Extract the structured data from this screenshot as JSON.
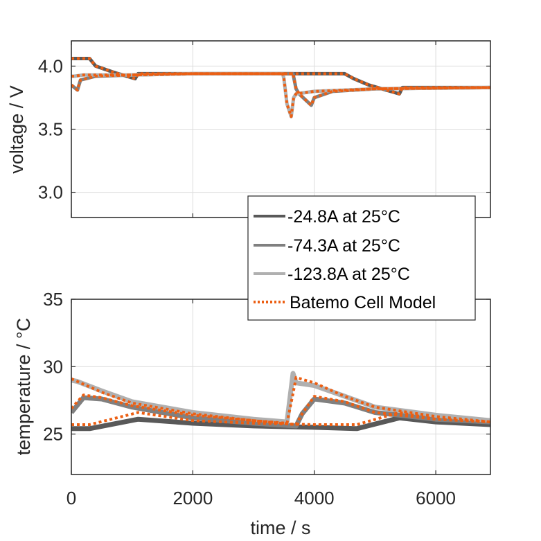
{
  "colors": {
    "s1": "#595959",
    "s2": "#808080",
    "s3": "#b0b0b0",
    "model": "#ec5f13",
    "grid": "#dcdcdc",
    "axis": "#262626"
  },
  "chart_data": [
    {
      "type": "line",
      "title": "",
      "xlabel": "",
      "ylabel": "voltage / V",
      "xlim": [
        0,
        6900
      ],
      "ylim": [
        2.8,
        4.2
      ],
      "xticks": [
        0,
        2000,
        4000,
        6000
      ],
      "yticks": [
        3.0,
        3.5,
        4.0
      ],
      "ytick_labels": [
        "3.0",
        "3.5",
        "4.0"
      ],
      "grid": true,
      "series": [
        {
          "name": "-24.8A at 25°C",
          "style": "solid",
          "color_key": "s1",
          "x": [
            0,
            300,
            400,
            700,
            1050,
            1100,
            2000,
            4500,
            4650,
            4900,
            5400,
            5450,
            6900
          ],
          "y": [
            4.06,
            4.06,
            4.0,
            3.95,
            3.9,
            3.94,
            3.94,
            3.94,
            3.9,
            3.85,
            3.78,
            3.83,
            3.83
          ]
        },
        {
          "name": "-74.3A at 25°C",
          "style": "solid",
          "color_key": "s2",
          "x": [
            0,
            100,
            150,
            400,
            1000,
            2000,
            3600,
            3650,
            3700,
            3750,
            3950,
            4000,
            4300,
            5000,
            6900
          ],
          "y": [
            3.85,
            3.81,
            3.89,
            3.92,
            3.93,
            3.94,
            3.94,
            3.94,
            3.82,
            3.78,
            3.69,
            3.75,
            3.8,
            3.82,
            3.83
          ]
        },
        {
          "name": "-123.8A at 25°C",
          "style": "solid",
          "color_key": "s3",
          "x": [
            0,
            50,
            200,
            1000,
            2000,
            3480,
            3500,
            3550,
            3620,
            3660,
            3700,
            4000,
            5000,
            6900
          ],
          "y": [
            3.92,
            3.92,
            3.93,
            3.93,
            3.94,
            3.94,
            3.9,
            3.7,
            3.6,
            3.75,
            3.78,
            3.8,
            3.82,
            3.83
          ]
        },
        {
          "name": "Batemo Cell Model",
          "style": "dotted",
          "color_key": "model",
          "note": "overlays all three measurements",
          "x": [
            0,
            300,
            400,
            700,
            1050,
            1100,
            2000,
            4500,
            4650,
            4900,
            5400,
            5450,
            6900
          ],
          "y": [
            4.06,
            4.06,
            4.0,
            3.95,
            3.9,
            3.94,
            3.94,
            3.94,
            3.9,
            3.85,
            3.78,
            3.83,
            3.83
          ]
        },
        {
          "name": "Batemo Cell Model",
          "style": "dotted",
          "color_key": "model",
          "x": [
            0,
            100,
            150,
            400,
            1000,
            2000,
            3600,
            3650,
            3700,
            3750,
            3950,
            4000,
            4300,
            5000,
            6900
          ],
          "y": [
            3.85,
            3.81,
            3.89,
            3.92,
            3.93,
            3.94,
            3.94,
            3.94,
            3.82,
            3.78,
            3.69,
            3.75,
            3.8,
            3.82,
            3.83
          ]
        },
        {
          "name": "Batemo Cell Model",
          "style": "dotted",
          "color_key": "model",
          "x": [
            0,
            50,
            200,
            1000,
            2000,
            3480,
            3500,
            3550,
            3620,
            3660,
            3700,
            4000,
            5000,
            6900
          ],
          "y": [
            3.92,
            3.92,
            3.93,
            3.93,
            3.94,
            3.94,
            3.9,
            3.7,
            3.6,
            3.75,
            3.78,
            3.8,
            3.82,
            3.83
          ]
        }
      ]
    },
    {
      "type": "line",
      "title": "",
      "xlabel": "time / s",
      "ylabel": "temperature / °C",
      "xlim": [
        0,
        6900
      ],
      "ylim": [
        22,
        35
      ],
      "xticks": [
        0,
        2000,
        4000,
        6000
      ],
      "xtick_labels": [
        "0",
        "2000",
        "4000",
        "6000"
      ],
      "yticks": [
        25,
        30,
        35
      ],
      "ytick_labels": [
        "25",
        "30",
        "35"
      ],
      "grid": true,
      "series": [
        {
          "name": "-24.8A at 25°C",
          "style": "solid",
          "color_key": "s1",
          "x": [
            0,
            300,
            1100,
            2000,
            3000,
            4000,
            4700,
            5400,
            6000,
            6900
          ],
          "y": [
            25.4,
            25.4,
            26.1,
            25.8,
            25.6,
            25.5,
            25.4,
            26.2,
            25.9,
            25.7
          ]
        },
        {
          "name": "-74.3A at 25°C",
          "style": "solid",
          "color_key": "s2",
          "x": [
            0,
            200,
            500,
            1000,
            2000,
            3000,
            3700,
            3800,
            4000,
            4500,
            5000,
            6000,
            6900
          ],
          "y": [
            26.6,
            27.7,
            27.6,
            27.0,
            26.2,
            25.8,
            25.6,
            26.5,
            27.6,
            27.3,
            26.6,
            26.1,
            25.9
          ]
        },
        {
          "name": "-123.8A at 25°C",
          "style": "solid",
          "color_key": "s3",
          "x": [
            0,
            100,
            500,
            1000,
            2000,
            3000,
            3550,
            3650,
            3700,
            4000,
            4500,
            5000,
            6000,
            6900
          ],
          "y": [
            29.0,
            28.9,
            28.2,
            27.4,
            26.6,
            26.1,
            25.9,
            29.5,
            28.8,
            28.6,
            27.8,
            27.0,
            26.4,
            26.0
          ]
        },
        {
          "name": "Batemo Cell Model",
          "style": "dotted",
          "color_key": "model",
          "x": [
            0,
            300,
            1100,
            2000,
            3000,
            4000,
            4700,
            5400,
            6000,
            6900
          ],
          "y": [
            25.7,
            25.7,
            26.6,
            26.0,
            25.8,
            25.7,
            25.7,
            26.6,
            26.1,
            25.9
          ]
        },
        {
          "name": "Batemo Cell Model",
          "style": "dotted",
          "color_key": "model",
          "x": [
            0,
            200,
            500,
            1000,
            2000,
            3000,
            3700,
            3800,
            4000,
            4500,
            5000,
            6000,
            6900
          ],
          "y": [
            26.9,
            27.9,
            27.7,
            27.1,
            26.4,
            26.0,
            25.7,
            26.5,
            27.8,
            27.4,
            26.6,
            26.1,
            25.9
          ]
        },
        {
          "name": "Batemo Cell Model",
          "style": "dotted",
          "color_key": "model",
          "x": [
            0,
            100,
            500,
            1000,
            2000,
            3000,
            3550,
            3650,
            3700,
            4000,
            4500,
            5000,
            6000,
            6900
          ],
          "y": [
            29.1,
            28.9,
            28.1,
            27.3,
            26.5,
            26.0,
            25.8,
            28.0,
            29.2,
            28.8,
            27.8,
            27.0,
            26.3,
            25.9
          ]
        }
      ]
    }
  ],
  "legend": {
    "placement": "center-right, between panels",
    "entries": [
      {
        "label": "-24.8A at 25°C",
        "style": "solid",
        "color_key": "s1"
      },
      {
        "label": "-74.3A at 25°C",
        "style": "solid",
        "color_key": "s2"
      },
      {
        "label": "-123.8A at 25°C",
        "style": "solid",
        "color_key": "s3"
      },
      {
        "label": "Batemo Cell Model",
        "style": "dotted",
        "color_key": "model"
      }
    ]
  }
}
